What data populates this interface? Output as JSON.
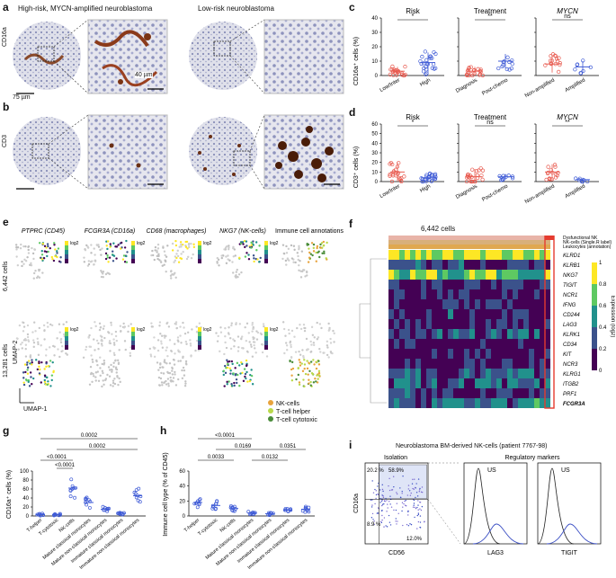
{
  "panels": {
    "a": "a",
    "b": "b",
    "c": "c",
    "d": "d",
    "e": "e",
    "f": "f",
    "g": "g",
    "h": "h",
    "i": "i"
  },
  "panel_a": {
    "title_highrisk": "High-risk, MYCN-amplified neuroblastoma",
    "title_lowrisk": "Low-risk neuroblastoma",
    "row_label": "CD16a",
    "scale_left": "75 µm",
    "scale_right": "40 µm"
  },
  "panel_b": {
    "row_label": "CD3"
  },
  "panel_c": {
    "ylabel": "CD16a⁺ cells (%)",
    "groups": [
      {
        "title": "Risk",
        "x": [
          "Low/Inter",
          "High"
        ],
        "sig": "*"
      },
      {
        "title": "Treatment",
        "x": [
          "Diagnosis",
          "Post-chemo"
        ],
        "sig": "**"
      },
      {
        "title": "MYCN",
        "x": [
          "Non-amplified",
          "Amplified"
        ],
        "sig": "ns"
      }
    ],
    "yticks": [
      "0",
      "10",
      "20",
      "30",
      "40"
    ]
  },
  "panel_d": {
    "ylabel": "CD3⁺ cells (%)",
    "groups": [
      {
        "title": "Risk",
        "x": [
          "Low/Inter",
          "High"
        ],
        "sig": "*"
      },
      {
        "title": "Treatment",
        "x": [
          "Diagnosis",
          "Post-chemo"
        ],
        "sig": "ns"
      },
      {
        "title": "MYCN",
        "x": [
          "Non-amplified",
          "Amplified"
        ],
        "sig": "**"
      }
    ],
    "yticks": [
      "0",
      "10",
      "20",
      "30",
      "40",
      "50",
      "60"
    ]
  },
  "panel_e": {
    "columns": [
      "PTPRC (CD45)",
      "FCGR3A (CD16a)",
      "CD68 (macrophages)",
      "NKG7 (NK-cells)",
      "Immune cell annotations"
    ],
    "row1_label": "6,442 cells",
    "row2_label": "13,281 cells",
    "umap2": "UMAP-2",
    "umap1": "UMAP-1",
    "legend_title": "log2",
    "legend": [
      {
        "label": "NK-cells",
        "color": "#e8a33c"
      },
      {
        "label": "T-cell helper",
        "color": "#b9d94a"
      },
      {
        "label": "T-cell cytotoxic",
        "color": "#4a8c3a"
      }
    ]
  },
  "panel_f": {
    "title": "6,442 cells",
    "annotations": [
      "Dysfunctional NK",
      "NK-cells (Single.R label)",
      "Leukocytes (annotation)"
    ],
    "genes": [
      "KLRD1",
      "KLRB1",
      "NKG7",
      "TIGIT",
      "NCR1",
      "IFNG",
      "CD244",
      "LAG3",
      "KLRK1",
      "CD34",
      "KIT",
      "NCR3",
      "KLRG1",
      "ITGB2",
      "PRF1",
      "FCGR3A"
    ],
    "colorbar_label": "Expression (log2)",
    "colorbar_ticks": [
      "0",
      "0.2",
      "0.4",
      "0.6",
      "0.8",
      "1"
    ]
  },
  "panel_g": {
    "ylabel": "CD16a⁺ cells (%)",
    "categories": [
      "T-helper",
      "T-cytotoxic",
      "NK-cells",
      "Mature classical monocytes",
      "Mature non-classical monocytes",
      "Immature classical monocytes",
      "Immature non-classical monocytes"
    ],
    "pvals": [
      "0.0002",
      "0.0002",
      "<0.0001",
      "<0.0001"
    ],
    "yticks": [
      "0",
      "20",
      "40",
      "60",
      "80",
      "100"
    ]
  },
  "panel_h": {
    "ylabel": "Immune cell type (% of CD45)",
    "categories": [
      "T-helper",
      "T-cytotoxic",
      "NK-cells",
      "Mature classical monocytes",
      "Mature non-classical monocytes",
      "Immature classical monocytes",
      "Immature non-classical monocytes"
    ],
    "pvals": [
      "<0.0001",
      "0.0169",
      "0.0351",
      "0.0033",
      "0.0132"
    ],
    "yticks": [
      "0",
      "20",
      "40",
      "60"
    ]
  },
  "panel_i": {
    "title": "Neuroblastoma BM-derived NK-cells (patient 7767-98)",
    "isolation": "Isolation",
    "regulatory": "Regulatory markers",
    "q_tl": "20.2 %",
    "q_tr": "58.9%",
    "q_bl": "8.9 %",
    "q_br": "12.0%",
    "xlabel": "CD56",
    "ylabel": "CD16a",
    "hist1": "LAG3",
    "hist2": "TIGIT",
    "us": "US"
  }
}
